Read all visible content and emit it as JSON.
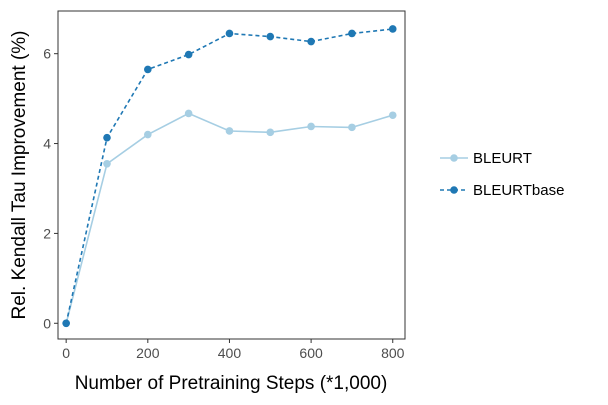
{
  "chart_data": {
    "type": "line",
    "title": "",
    "xlabel": "Number of Pretraining Steps (*1,000)",
    "ylabel": "Rel. Kendall Tau Improvement (%)",
    "xlim": [
      -20,
      830
    ],
    "ylim": [
      -0.35,
      6.95
    ],
    "x_ticks": [
      0,
      200,
      400,
      600,
      800
    ],
    "x_tick_labels": [
      "0",
      "200",
      "400",
      "600",
      "800"
    ],
    "y_ticks": [
      0,
      2,
      4,
      6
    ],
    "y_tick_labels": [
      "0",
      "2",
      "4",
      "6"
    ],
    "grid": false,
    "legend_position": "right",
    "x": [
      0,
      100,
      200,
      300,
      400,
      500,
      600,
      700,
      800
    ],
    "series": [
      {
        "name": "BLEURT",
        "values": [
          0.0,
          3.55,
          4.2,
          4.67,
          4.28,
          4.25,
          4.38,
          4.36,
          4.63
        ],
        "color": "#a6cee3",
        "dash": "solid"
      },
      {
        "name": "BLEURTbase",
        "values": [
          0.0,
          4.13,
          5.65,
          5.98,
          6.45,
          6.38,
          6.27,
          6.45,
          6.55
        ],
        "color": "#1f78b4",
        "dash": "dashed"
      }
    ]
  }
}
